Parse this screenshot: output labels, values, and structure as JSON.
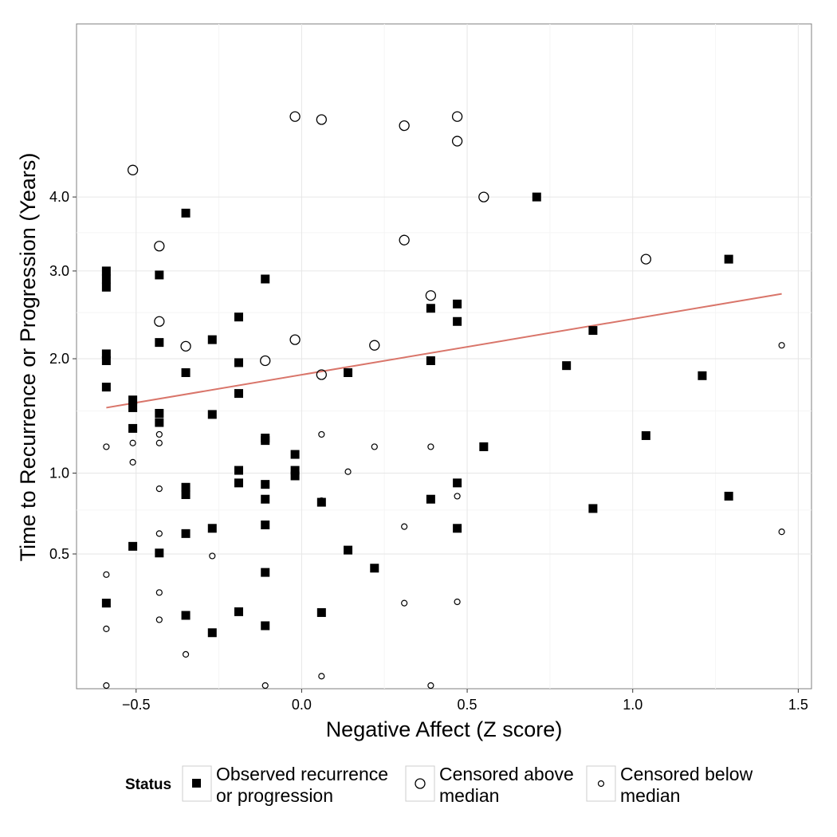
{
  "chart_data": {
    "type": "scatter",
    "title": "",
    "xlabel": "Negative Affect (Z score)",
    "ylabel": "Time to Recurrence or Progression (Years)",
    "x_ticks": [
      -0.5,
      0.0,
      0.5,
      1.0,
      1.5
    ],
    "x_tick_labels": [
      "−0.5",
      "0.0",
      "0.5",
      "1.0",
      "1.5"
    ],
    "y_ticks": [
      0.5,
      1.0,
      2.0,
      3.0,
      4.0
    ],
    "y_tick_labels": [
      "0.5",
      "1.0",
      "2.0",
      "3.0",
      "4.0"
    ],
    "xlim": [
      -0.68,
      1.54
    ],
    "ylim": [
      0.048,
      6.9
    ],
    "y_scale": "sqrt",
    "grid": true,
    "legend": {
      "title": "Status",
      "position": "bottom",
      "entries": [
        {
          "line1": "Observed recurrence",
          "line2": "or progression",
          "marker": "filled-square"
        },
        {
          "line1": "Censored above",
          "line2": "median",
          "marker": "large-open-circle"
        },
        {
          "line1": "Censored below",
          "line2": "median",
          "marker": "small-open-circle"
        }
      ]
    },
    "trend_line": {
      "color": "#d9756a",
      "points": [
        [
          -0.59,
          1.53
        ],
        [
          1.45,
          2.72
        ]
      ]
    },
    "series": [
      {
        "name": "Observed recurrence or progression",
        "marker": "filled-square",
        "points": [
          [
            -0.59,
            3.0
          ],
          [
            -0.59,
            2.9
          ],
          [
            -0.59,
            2.8
          ],
          [
            -0.59,
            2.05
          ],
          [
            -0.59,
            1.98
          ],
          [
            -0.59,
            1.72
          ],
          [
            -0.59,
            0.28
          ],
          [
            -0.51,
            1.6
          ],
          [
            -0.51,
            1.53
          ],
          [
            -0.51,
            1.35
          ],
          [
            -0.51,
            0.54
          ],
          [
            -0.43,
            2.95
          ],
          [
            -0.43,
            2.17
          ],
          [
            -0.43,
            1.48
          ],
          [
            -0.43,
            1.4
          ],
          [
            -0.43,
            0.505
          ],
          [
            -0.35,
            3.77
          ],
          [
            -0.35,
            1.86
          ],
          [
            -0.35,
            0.9
          ],
          [
            -0.35,
            0.85
          ],
          [
            -0.35,
            0.61
          ],
          [
            -0.35,
            0.235
          ],
          [
            -0.27,
            2.2
          ],
          [
            -0.27,
            1.47
          ],
          [
            -0.27,
            0.64
          ],
          [
            -0.27,
            0.178
          ],
          [
            -0.19,
            2.45
          ],
          [
            -0.19,
            1.96
          ],
          [
            -0.19,
            1.66
          ],
          [
            -0.19,
            1.02
          ],
          [
            -0.19,
            0.93
          ],
          [
            -0.19,
            0.248
          ],
          [
            -0.11,
            2.9
          ],
          [
            -0.11,
            1.27
          ],
          [
            -0.11,
            1.25
          ],
          [
            -0.11,
            0.92
          ],
          [
            -0.11,
            0.82
          ],
          [
            -0.11,
            0.66
          ],
          [
            -0.11,
            0.41
          ],
          [
            -0.11,
            0.2
          ],
          [
            -0.02,
            1.14
          ],
          [
            -0.02,
            1.02
          ],
          [
            -0.02,
            0.98
          ],
          [
            0.06,
            0.8
          ],
          [
            0.06,
            0.245
          ],
          [
            0.14,
            1.86
          ],
          [
            0.14,
            0.52
          ],
          [
            0.22,
            0.43
          ],
          [
            0.39,
            2.55
          ],
          [
            0.39,
            1.98
          ],
          [
            0.39,
            0.82
          ],
          [
            0.47,
            2.6
          ],
          [
            0.47,
            2.4
          ],
          [
            0.47,
            0.93
          ],
          [
            0.47,
            0.64
          ],
          [
            0.55,
            1.2
          ],
          [
            0.71,
            4.0
          ],
          [
            0.8,
            1.93
          ],
          [
            0.88,
            2.3
          ],
          [
            0.88,
            0.76
          ],
          [
            1.04,
            1.29
          ],
          [
            1.21,
            1.83
          ],
          [
            1.29,
            3.15
          ],
          [
            1.29,
            0.84
          ]
        ]
      },
      {
        "name": "Censored above median",
        "marker": "large-open-circle",
        "points": [
          [
            -0.51,
            4.4
          ],
          [
            -0.43,
            3.32
          ],
          [
            -0.43,
            2.4
          ],
          [
            -0.35,
            2.13
          ],
          [
            -0.11,
            1.98
          ],
          [
            -0.02,
            5.25
          ],
          [
            -0.02,
            2.2
          ],
          [
            0.06,
            5.2
          ],
          [
            0.06,
            1.84
          ],
          [
            0.22,
            2.14
          ],
          [
            0.31,
            5.1
          ],
          [
            0.31,
            3.4
          ],
          [
            0.39,
            2.7
          ],
          [
            0.47,
            5.25
          ],
          [
            0.47,
            4.85
          ],
          [
            0.55,
            4.0
          ],
          [
            1.04,
            3.15
          ]
        ]
      },
      {
        "name": "Censored below median",
        "marker": "small-open-circle",
        "points": [
          [
            -0.59,
            1.2
          ],
          [
            -0.59,
            0.4
          ],
          [
            -0.59,
            0.19
          ],
          [
            -0.59,
            0.033
          ],
          [
            -0.51,
            1.23
          ],
          [
            -0.51,
            1.08
          ],
          [
            -0.43,
            1.3
          ],
          [
            -0.43,
            1.23
          ],
          [
            -0.43,
            0.89
          ],
          [
            -0.43,
            0.61
          ],
          [
            -0.43,
            0.322
          ],
          [
            -0.43,
            0.22
          ],
          [
            -0.35,
            0.118
          ],
          [
            -0.27,
            0.49
          ],
          [
            0.06,
            1.3
          ],
          [
            0.06,
            0.81
          ],
          [
            0.06,
            0.07
          ],
          [
            0.14,
            1.01
          ],
          [
            0.22,
            1.2
          ],
          [
            0.31,
            0.65
          ],
          [
            0.31,
            0.28
          ],
          [
            0.39,
            1.2
          ],
          [
            0.39,
            0.014
          ],
          [
            0.47,
            0.84
          ],
          [
            0.47,
            0.285
          ],
          [
            1.45,
            2.14
          ],
          [
            1.45,
            0.62
          ],
          [
            -0.11,
            0.0005
          ]
        ]
      }
    ]
  }
}
